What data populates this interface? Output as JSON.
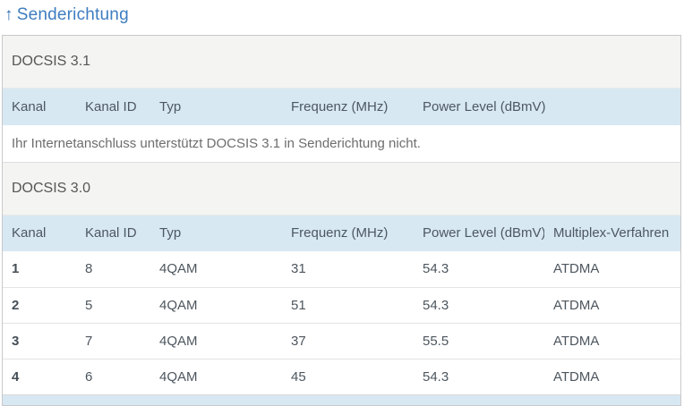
{
  "page": {
    "title": "Senderichtung",
    "title_arrow": "↑"
  },
  "colors": {
    "accent_blue": "#3e7dc1",
    "column_header_bg": "#d7e8f3",
    "section_header_bg": "#f4f4f3"
  },
  "docsis31": {
    "section_label": "DOCSIS 3.1",
    "columns": [
      "Kanal",
      "Kanal ID",
      "Typ",
      "Frequenz (MHz)",
      "Power Level (dBmV)"
    ],
    "message": "Ihr Internetanschluss unterstützt DOCSIS 3.1 in Senderichtung nicht."
  },
  "docsis30": {
    "section_label": "DOCSIS 3.0",
    "columns": [
      "Kanal",
      "Kanal ID",
      "Typ",
      "Frequenz (MHz)",
      "Power Level (dBmV)",
      "Multiplex-Verfahren"
    ],
    "rows": [
      {
        "kanal": "1",
        "kanal_id": "8",
        "typ": "4QAM",
        "frequenz": "31",
        "power_level": "54.3",
        "multiplex": "ATDMA"
      },
      {
        "kanal": "2",
        "kanal_id": "5",
        "typ": "4QAM",
        "frequenz": "51",
        "power_level": "54.3",
        "multiplex": "ATDMA"
      },
      {
        "kanal": "3",
        "kanal_id": "7",
        "typ": "4QAM",
        "frequenz": "37",
        "power_level": "55.5",
        "multiplex": "ATDMA"
      },
      {
        "kanal": "4",
        "kanal_id": "6",
        "typ": "4QAM",
        "frequenz": "45",
        "power_level": "54.3",
        "multiplex": "ATDMA"
      }
    ]
  }
}
